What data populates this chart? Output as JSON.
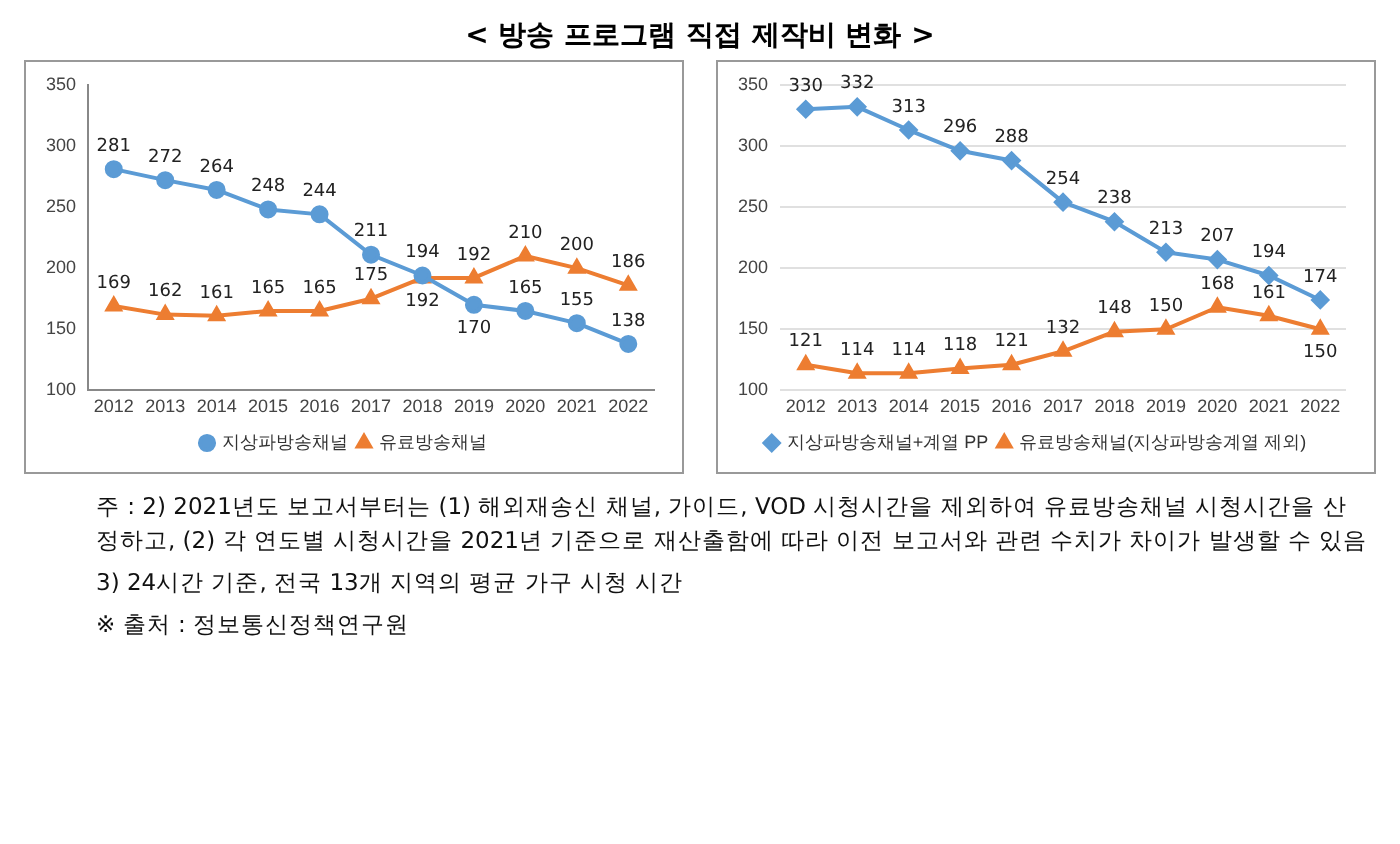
{
  "chart_data": [
    {
      "type": "line",
      "title": "< 방송 프로그램 직접 제작비 변화 >",
      "categories": [
        "2012",
        "2013",
        "2014",
        "2015",
        "2016",
        "2017",
        "2018",
        "2019",
        "2020",
        "2021",
        "2022"
      ],
      "series": [
        {
          "name": "지상파방송채널",
          "color": "#5b9bd5",
          "marker": "circle",
          "values": [
            281,
            272,
            264,
            248,
            244,
            211,
            194,
            170,
            165,
            155,
            138
          ]
        },
        {
          "name": "유료방송채널",
          "color": "#ed7d31",
          "marker": "triangle",
          "values": [
            169,
            162,
            161,
            165,
            165,
            175,
            192,
            192,
            210,
            200,
            186
          ]
        }
      ],
      "ylim": [
        100,
        350
      ],
      "yticks": [
        100,
        150,
        200,
        250,
        300,
        350
      ],
      "grid": false,
      "legend": "bottom",
      "data_labels": true
    },
    {
      "type": "line",
      "categories": [
        "2012",
        "2013",
        "2014",
        "2015",
        "2016",
        "2017",
        "2018",
        "2019",
        "2020",
        "2021",
        "2022"
      ],
      "series": [
        {
          "name": "지상파방송채널+계열 PP",
          "color": "#5b9bd5",
          "marker": "diamond",
          "values": [
            330,
            332,
            313,
            296,
            288,
            254,
            238,
            213,
            207,
            194,
            174
          ]
        },
        {
          "name": "유료방송채널(지상파방송계열 제외)",
          "color": "#ed7d31",
          "marker": "triangle",
          "values": [
            121,
            114,
            114,
            118,
            121,
            132,
            148,
            150,
            168,
            161,
            150
          ]
        }
      ],
      "ylim": [
        100,
        350
      ],
      "yticks": [
        100,
        150,
        200,
        250,
        300,
        350
      ],
      "grid": "y",
      "legend": "bottom",
      "data_labels": true,
      "annotations": [
        "주 : 2) 2021년도 보고서부터는 (1) 해외재송신 채널, 가이드, VOD 시청시간을 제외하여 유료방송채널 시청시간을 산정하고, (2) 각 연도별 시청시간을 2021년 기준으로 재산출함에 따라 이전 보고서와 관련 수치가 차이가 발생할 수 있음",
        "3) 24시간 기준, 전국 13개 지역의 평균 가구 시청 시간",
        "※ 출처 : 정보통신정책연구원"
      ]
    }
  ]
}
